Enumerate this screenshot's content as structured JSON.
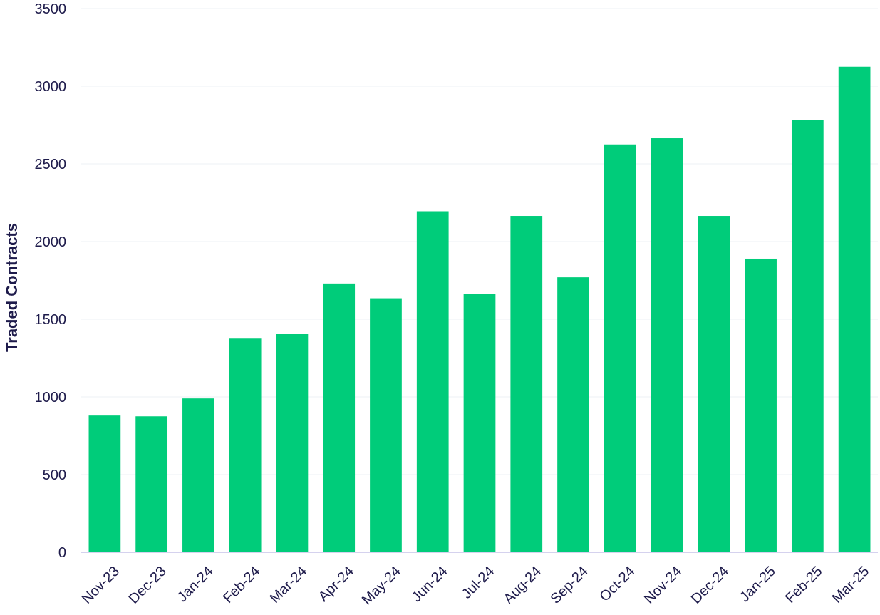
{
  "chart_data": {
    "type": "bar",
    "title": "",
    "xlabel": "",
    "ylabel": "Traded Contracts",
    "ylim": [
      0,
      3500
    ],
    "yticks": [
      0,
      500,
      1000,
      1500,
      2000,
      2500,
      3000,
      3500
    ],
    "grid": true,
    "legend": "none",
    "bar_color": "#00cc7a",
    "categories": [
      "Nov-23",
      "Dec-23",
      "Jan-24",
      "Feb-24",
      "Mar-24",
      "Apr-24",
      "May-24",
      "Jun-24",
      "Jul-24",
      "Aug-24",
      "Sep-24",
      "Oct-24",
      "Nov-24",
      "Dec-24",
      "Jan-25",
      "Feb-25",
      "Mar-25"
    ],
    "values": [
      880,
      875,
      990,
      1375,
      1405,
      1730,
      1635,
      2195,
      1665,
      2165,
      1770,
      2625,
      2665,
      2165,
      1890,
      2780,
      3125
    ]
  }
}
